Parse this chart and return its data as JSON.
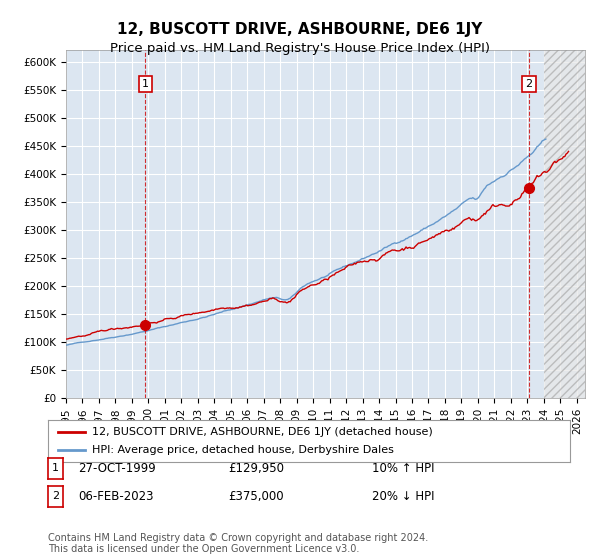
{
  "title": "12, BUSCOTT DRIVE, ASHBOURNE, DE6 1JY",
  "subtitle": "Price paid vs. HM Land Registry's House Price Index (HPI)",
  "xlabel": "",
  "ylabel": "",
  "ylim": [
    0,
    620000
  ],
  "yticks": [
    0,
    50000,
    100000,
    150000,
    200000,
    250000,
    300000,
    350000,
    400000,
    450000,
    500000,
    550000,
    600000
  ],
  "ytick_labels": [
    "£0",
    "£50K",
    "£100K",
    "£150K",
    "£200K",
    "£250K",
    "£300K",
    "£350K",
    "£400K",
    "£450K",
    "£500K",
    "£550K",
    "£600K"
  ],
  "xlim_start": 1995.0,
  "xlim_end": 2026.5,
  "xtick_years": [
    1995,
    1996,
    1997,
    1998,
    1999,
    2000,
    2001,
    2002,
    2003,
    2004,
    2005,
    2006,
    2007,
    2008,
    2009,
    2010,
    2011,
    2012,
    2013,
    2014,
    2015,
    2016,
    2017,
    2018,
    2019,
    2020,
    2021,
    2022,
    2023,
    2024,
    2025,
    2026
  ],
  "hpi_color": "#6699cc",
  "price_color": "#cc0000",
  "bg_color": "#dce6f1",
  "hatch_color": "#aaaaaa",
  "grid_color": "#ffffff",
  "sale1_x": 1999.82,
  "sale1_y": 129950,
  "sale2_x": 2023.09,
  "sale2_y": 375000,
  "sale1_label": "1",
  "sale2_label": "2",
  "legend_line1": "12, BUSCOTT DRIVE, ASHBOURNE, DE6 1JY (detached house)",
  "legend_line2": "HPI: Average price, detached house, Derbyshire Dales",
  "table_row1": [
    "1",
    "27-OCT-1999",
    "£129,950",
    "10% ↑ HPI"
  ],
  "table_row2": [
    "2",
    "06-FEB-2023",
    "£375,000",
    "20% ↓ HPI"
  ],
  "footer": "Contains HM Land Registry data © Crown copyright and database right 2024.\nThis data is licensed under the Open Government Licence v3.0.",
  "title_fontsize": 11,
  "subtitle_fontsize": 9.5,
  "tick_fontsize": 7.5,
  "legend_fontsize": 8,
  "footer_fontsize": 7
}
